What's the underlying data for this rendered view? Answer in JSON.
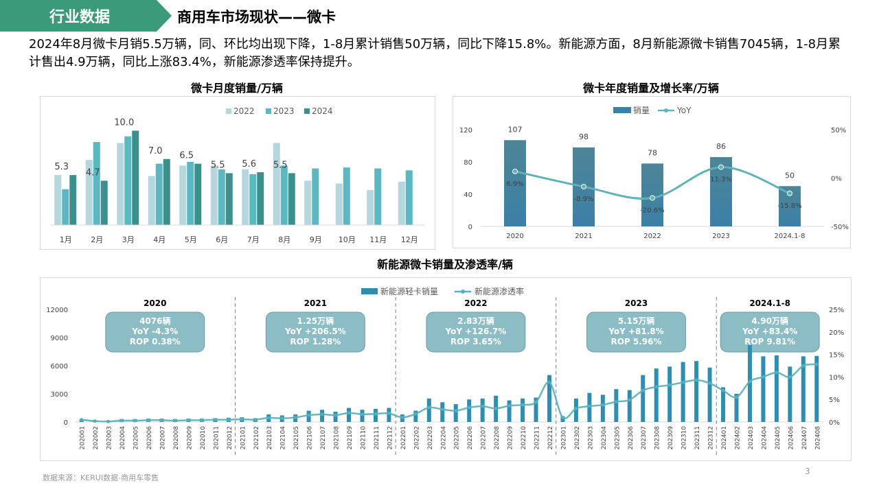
{
  "header": {
    "section_tag": "行业数据",
    "title": "商用车市场现状——微卡",
    "accent_color": "#3a9a7a"
  },
  "summary": "2024年8月微卡月销5.5万辆，同、环比均出现下降，1-8月累计销售50万辆，同比下降15.8%。新能源方面，8月新能源微卡销售7045辆，1-8月累计售出4.9万辆，同比上涨83.4%，新能源渗透率保持提升。",
  "footer": {
    "source": "数据来源：KERUI数据-商用车零售",
    "page_number": "3"
  },
  "chart_data": [
    {
      "id": "monthly",
      "type": "bar",
      "title": "微卡月度销量/万辆",
      "categories": [
        "1月",
        "2月",
        "3月",
        "4月",
        "5月",
        "6月",
        "7月",
        "8月",
        "9月",
        "10月",
        "11月",
        "12月"
      ],
      "ylim": [
        0,
        12
      ],
      "legend_position": "top",
      "series": [
        {
          "name": "2022",
          "color": "#b4d6dc",
          "values": [
            5.3,
            6.9,
            8.7,
            5.2,
            6.3,
            6.3,
            5.9,
            8.7,
            4.7,
            4.4,
            3.7,
            4.6
          ]
        },
        {
          "name": "2023",
          "color": "#5bb8c0",
          "values": [
            3.8,
            8.8,
            9.4,
            6.5,
            6.7,
            5.9,
            5.4,
            6.3,
            6.0,
            6.1,
            6.0,
            5.8
          ]
        },
        {
          "name": "2024",
          "color": "#3d8f8c",
          "values": [
            5.3,
            4.7,
            10.0,
            7.0,
            6.5,
            5.5,
            5.6,
            5.5,
            null,
            null,
            null,
            null
          ]
        }
      ],
      "data_labels": [
        "5.3",
        "4.7",
        "10.0",
        "7.0",
        "6.5",
        "5.5",
        "5.6",
        "5.5"
      ]
    },
    {
      "id": "annual",
      "type": "bar",
      "title": "微卡年度销量及增长率/万辆",
      "categories": [
        "2020",
        "2021",
        "2022",
        "2023",
        "2024.1-8"
      ],
      "ylim": [
        0,
        120
      ],
      "y_ticks": [
        "0",
        "40",
        "80",
        "120"
      ],
      "y2lim": [
        -50,
        50
      ],
      "y2_ticks": [
        "-50%",
        "0%",
        "50%"
      ],
      "legend_position": "top",
      "series": [
        {
          "name": "销量",
          "kind": "bar",
          "color": "#3b80a8",
          "values": [
            107,
            98,
            78,
            86,
            50
          ],
          "labels": [
            "107",
            "98",
            "78",
            "86",
            "50"
          ]
        },
        {
          "name": "YoY",
          "kind": "line",
          "color": "#5fb3b7",
          "values": [
            6.9,
            -8.9,
            -20.6,
            11.3,
            -15.8
          ],
          "labels": [
            "6.9%",
            "-8.9%",
            "-20.6%",
            "11.3%",
            "-15.8%"
          ]
        }
      ]
    },
    {
      "id": "nev",
      "type": "bar",
      "title": "新能源微卡销量及渗透率/辆",
      "ylim": [
        0,
        12000
      ],
      "y_ticks": [
        "0",
        "3000",
        "6000",
        "9000",
        "12000"
      ],
      "y2lim": [
        0,
        25
      ],
      "y2_ticks": [
        "0%",
        "5%",
        "10%",
        "15%",
        "20%",
        "25%"
      ],
      "legend_position": "top",
      "x": [
        "202001",
        "202002",
        "202003",
        "202004",
        "202005",
        "202006",
        "202007",
        "202008",
        "202009",
        "202010",
        "202011",
        "202012",
        "202101",
        "202102",
        "202103",
        "202104",
        "202105",
        "202106",
        "202107",
        "202108",
        "202109",
        "202110",
        "202111",
        "202112",
        "202201",
        "202202",
        "202203",
        "202204",
        "202205",
        "202206",
        "202207",
        "202208",
        "202209",
        "202210",
        "202211",
        "202212",
        "202301",
        "202302",
        "202303",
        "202304",
        "202305",
        "202306",
        "202307",
        "202308",
        "202309",
        "202310",
        "202311",
        "202312",
        "202401",
        "202402",
        "202403",
        "202404",
        "202405",
        "202406",
        "202407",
        "202408"
      ],
      "series": [
        {
          "name": "新能源轻卡销量",
          "kind": "bar",
          "color": "#2f8db0",
          "values": [
            300,
            150,
            150,
            300,
            300,
            350,
            350,
            300,
            350,
            350,
            400,
            450,
            500,
            400,
            800,
            700,
            800,
            1200,
            1300,
            1100,
            1500,
            1300,
            1400,
            1500,
            800,
            1200,
            2500,
            2100,
            1900,
            2400,
            2500,
            2800,
            2300,
            2500,
            2600,
            5000,
            600,
            2500,
            3100,
            2900,
            3500,
            3400,
            5000,
            5700,
            5900,
            6400,
            6500,
            5800,
            3700,
            3000,
            8200,
            7000,
            7100,
            5900,
            7000,
            7045
          ]
        },
        {
          "name": "新能源渗透率",
          "kind": "line",
          "color": "#55aebd",
          "values": [
            0.5,
            0.2,
            0.1,
            0.3,
            0.3,
            0.4,
            0.4,
            0.3,
            0.4,
            0.4,
            0.5,
            0.5,
            0.6,
            0.5,
            0.9,
            0.8,
            1.0,
            1.5,
            1.7,
            1.5,
            2.0,
            1.7,
            1.8,
            1.9,
            1.0,
            1.8,
            3.2,
            2.8,
            2.5,
            3.2,
            3.5,
            3.0,
            3.6,
            3.8,
            4.4,
            8.8,
            1.0,
            3.0,
            3.5,
            3.8,
            4.5,
            4.9,
            7.0,
            7.8,
            8.2,
            8.8,
            9.3,
            8.6,
            7.0,
            5.5,
            9.0,
            10.0,
            11.0,
            10.0,
            12.5,
            12.8
          ]
        }
      ],
      "year_groups": [
        {
          "label": "2020",
          "start": 0,
          "end": 11,
          "callout": [
            "4076辆",
            "YoY -4.3%",
            "ROP 0.38%"
          ]
        },
        {
          "label": "2021",
          "start": 12,
          "end": 23,
          "callout": [
            "1.25万辆",
            "YoY +206.5%",
            "ROP 1.28%"
          ]
        },
        {
          "label": "2022",
          "start": 24,
          "end": 35,
          "callout": [
            "2.83万辆",
            "YoY +126.7%",
            "ROP 3.65%"
          ]
        },
        {
          "label": "2023",
          "start": 36,
          "end": 47,
          "callout": [
            "5.15万辆",
            "YoY +81.8%",
            "ROP 5.96%"
          ]
        },
        {
          "label": "2024.1-8",
          "start": 48,
          "end": 55,
          "callout": [
            "4.90万辆",
            "YoY +83.4%",
            "ROP 9.81%"
          ]
        }
      ]
    }
  ]
}
